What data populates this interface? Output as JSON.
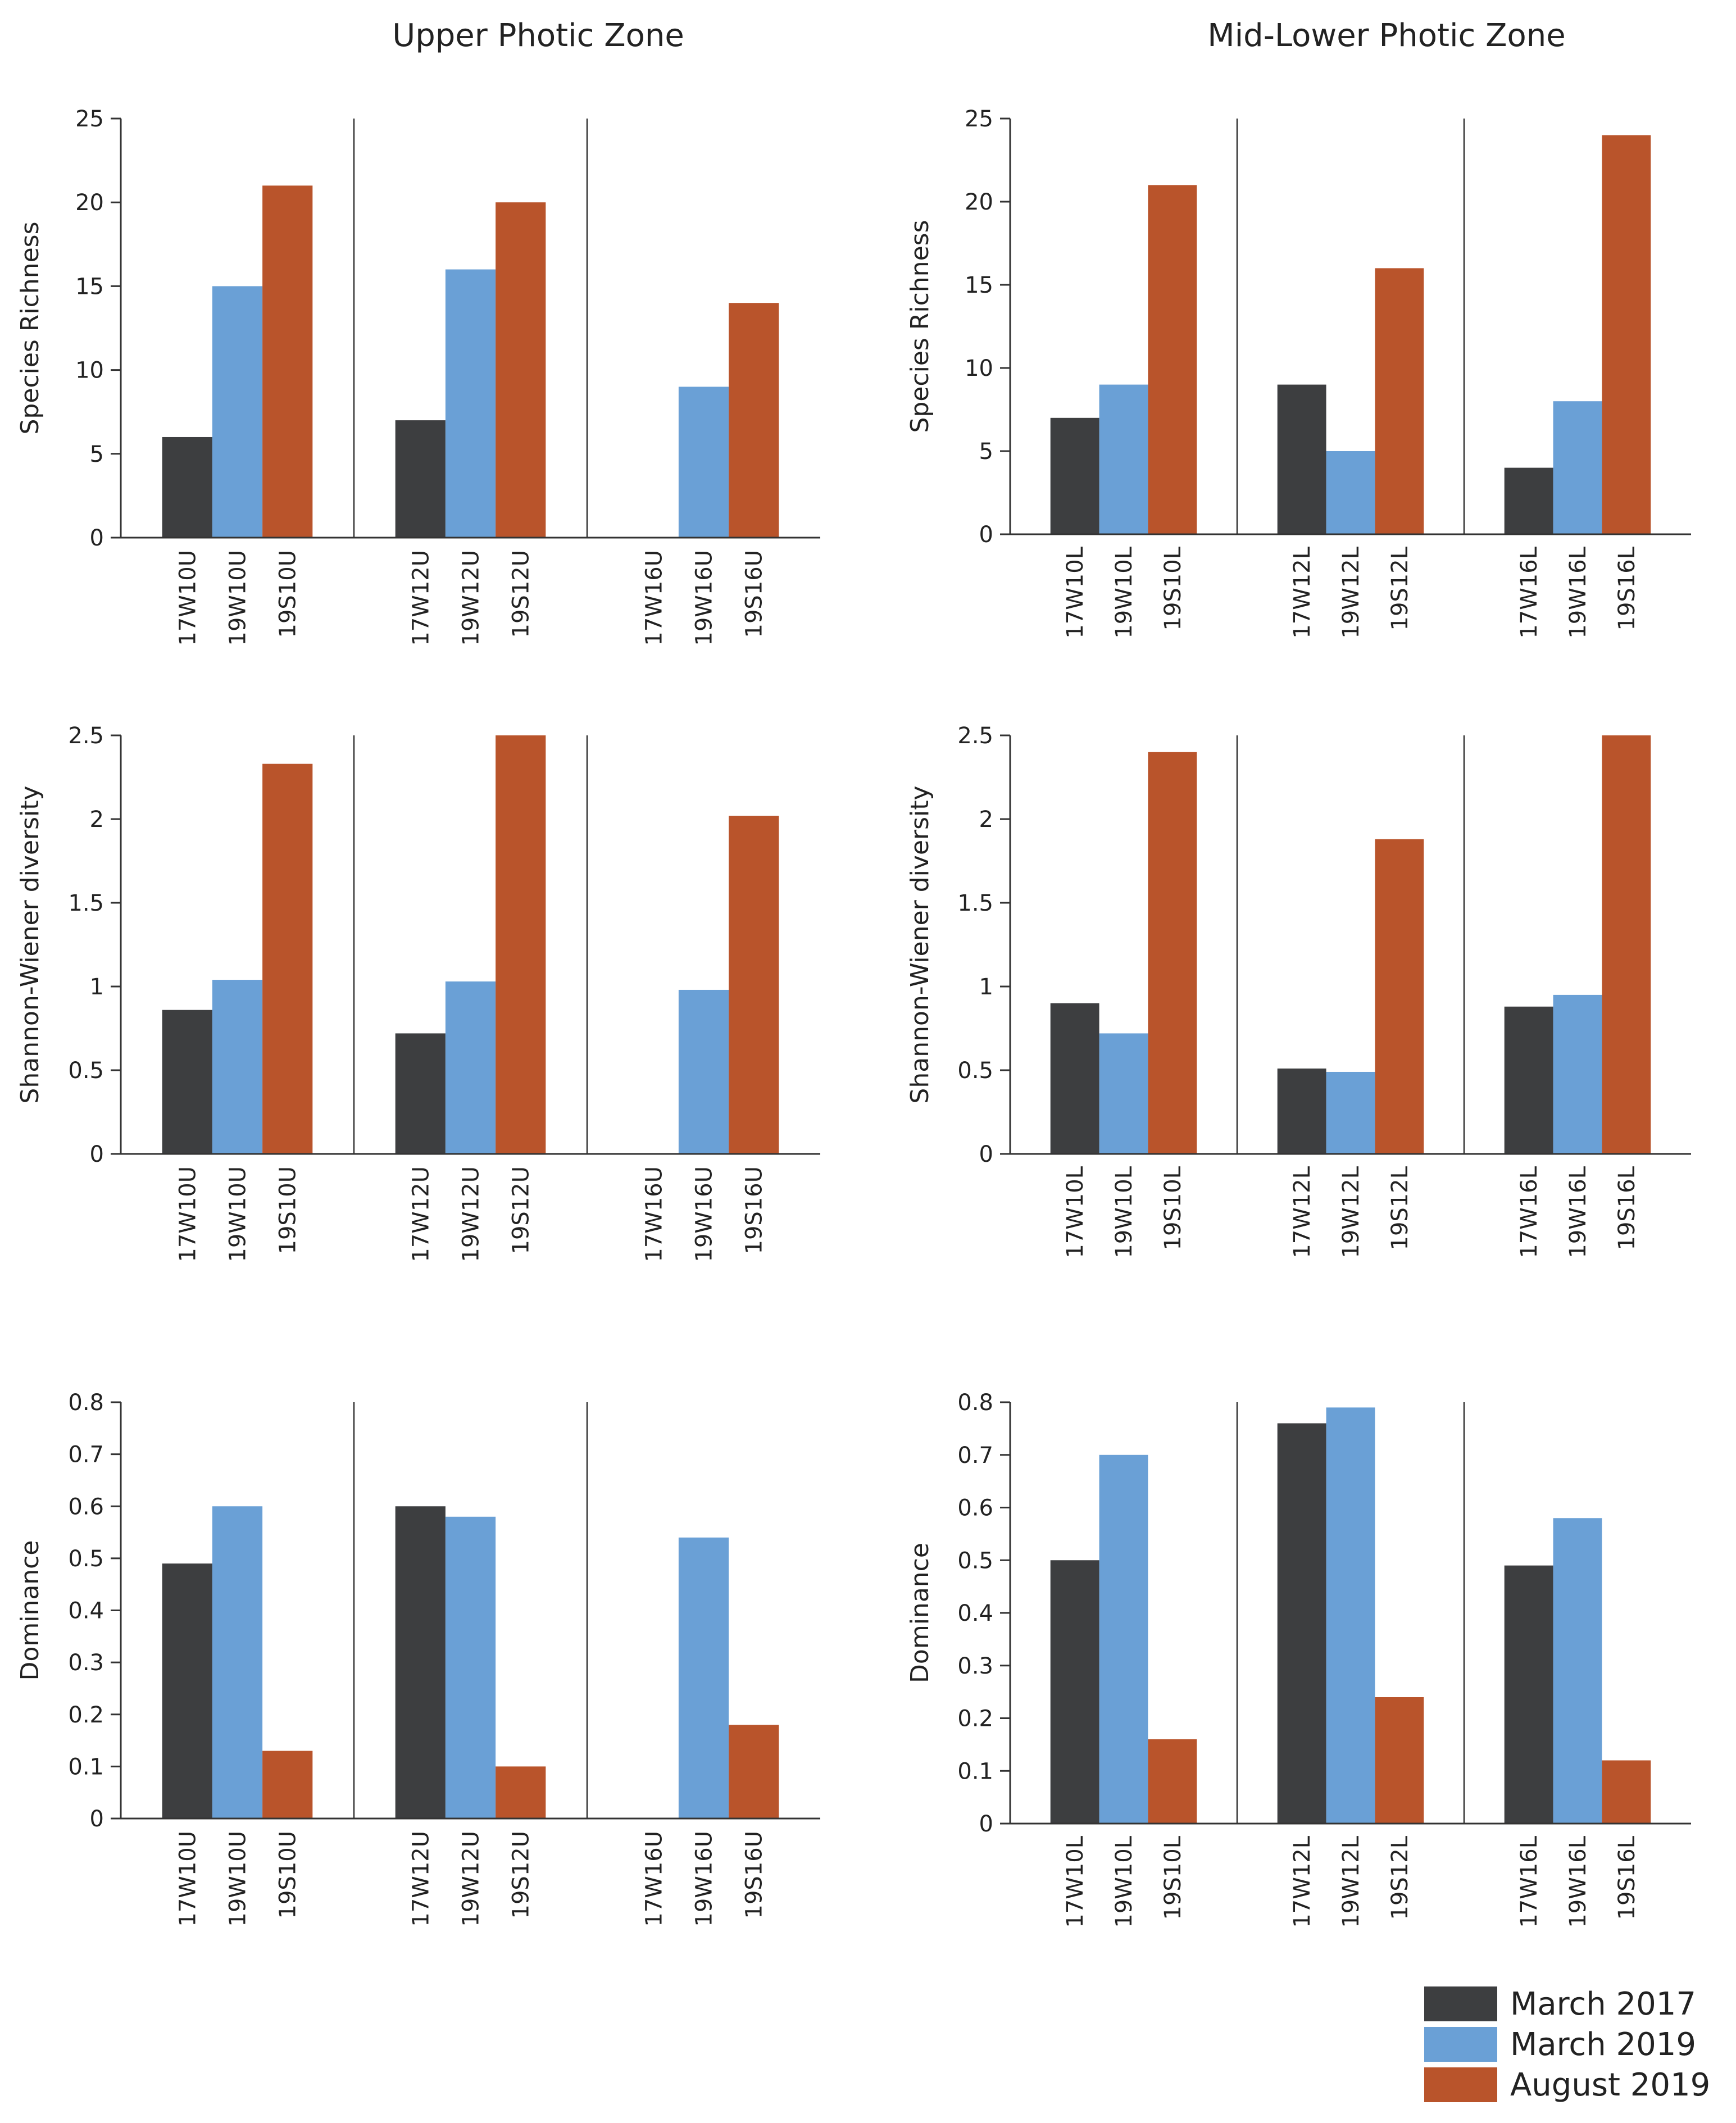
{
  "figure": {
    "column_titles": [
      "Upper Photic Zone",
      "Mid-Lower Photic Zone"
    ],
    "legend": [
      {
        "label": "March 2017",
        "color": "#3d3e40"
      },
      {
        "label": "March 2019",
        "color": "#6aa0d6"
      },
      {
        "label": "August 2019",
        "color": "#b9542b"
      }
    ]
  },
  "chart_data": [
    {
      "type": "bar",
      "panel": "upper-richness",
      "title": "Upper Photic Zone",
      "ylabel": "Species Richness",
      "ylim": [
        0,
        25
      ],
      "yticks": [
        0,
        5,
        10,
        15,
        20,
        25
      ],
      "ytick_labels": [
        "0",
        "5",
        "10",
        "15",
        "20",
        "25"
      ],
      "categories": [
        "17W10U",
        "19W10U",
        "19S10U",
        "17W12U",
        "19W12U",
        "19S12U",
        "17W16U",
        "19W16U",
        "19S16U"
      ],
      "values": [
        6,
        15,
        21,
        7,
        16,
        20,
        0,
        9,
        14
      ],
      "series_index": [
        0,
        1,
        2,
        0,
        1,
        2,
        0,
        1,
        2
      ]
    },
    {
      "type": "bar",
      "panel": "lower-richness",
      "title": "Mid-Lower Photic Zone",
      "ylabel": "Species Richness",
      "ylim": [
        0,
        25
      ],
      "yticks": [
        0,
        5,
        10,
        15,
        20,
        25
      ],
      "ytick_labels": [
        "0",
        "5",
        "10",
        "15",
        "20",
        "25"
      ],
      "categories": [
        "17W10L",
        "19W10L",
        "19S10L",
        "17W12L",
        "19W12L",
        "19S12L",
        "17W16L",
        "19W16L",
        "19S16L"
      ],
      "values": [
        7,
        9,
        21,
        9,
        5,
        16,
        4,
        8,
        24
      ],
      "series_index": [
        0,
        1,
        2,
        0,
        1,
        2,
        0,
        1,
        2
      ]
    },
    {
      "type": "bar",
      "panel": "upper-shannon",
      "ylabel": "Shannon-Wiener diversity",
      "ylim": [
        0,
        2.5
      ],
      "yticks": [
        0,
        0.5,
        1,
        1.5,
        2,
        2.5
      ],
      "ytick_labels": [
        "0",
        "0.5",
        "1",
        "1.5",
        "2",
        "2.5"
      ],
      "categories": [
        "17W10U",
        "19W10U",
        "19S10U",
        "17W12U",
        "19W12U",
        "19S12U",
        "17W16U",
        "19W16U",
        "19S16U"
      ],
      "values": [
        0.86,
        1.04,
        2.33,
        0.72,
        1.03,
        2.5,
        0,
        0.98,
        2.02
      ],
      "series_index": [
        0,
        1,
        2,
        0,
        1,
        2,
        0,
        1,
        2
      ]
    },
    {
      "type": "bar",
      "panel": "lower-shannon",
      "ylabel": "Shannon-Wiener diversity",
      "ylim": [
        0,
        2.5
      ],
      "yticks": [
        0,
        0.5,
        1,
        1.5,
        2,
        2.5
      ],
      "ytick_labels": [
        "0",
        "0.5",
        "1",
        "1.5",
        "2",
        "2.5"
      ],
      "categories": [
        "17W10L",
        "19W10L",
        "19S10L",
        "17W12L",
        "19W12L",
        "19S12L",
        "17W16L",
        "19W16L",
        "19S16L"
      ],
      "values": [
        0.9,
        0.72,
        2.4,
        0.51,
        0.49,
        1.88,
        0.88,
        0.95,
        2.5
      ],
      "series_index": [
        0,
        1,
        2,
        0,
        1,
        2,
        0,
        1,
        2
      ]
    },
    {
      "type": "bar",
      "panel": "upper-dominance",
      "ylabel": "Dominance",
      "ylim": [
        0,
        0.8
      ],
      "yticks": [
        0,
        0.1,
        0.2,
        0.3,
        0.4,
        0.5,
        0.6,
        0.7,
        0.8
      ],
      "ytick_labels": [
        "0",
        "0.1",
        "0.2",
        "0.3",
        "0.4",
        "0.5",
        "0.6",
        "0.7",
        "0.8"
      ],
      "categories": [
        "17W10U",
        "19W10U",
        "19S10U",
        "17W12U",
        "19W12U",
        "19S12U",
        "17W16U",
        "19W16U",
        "19S16U"
      ],
      "values": [
        0.49,
        0.6,
        0.13,
        0.6,
        0.58,
        0.1,
        0,
        0.54,
        0.18
      ],
      "series_index": [
        0,
        1,
        2,
        0,
        1,
        2,
        0,
        1,
        2
      ]
    },
    {
      "type": "bar",
      "panel": "lower-dominance",
      "ylabel": "Dominance",
      "ylim": [
        0,
        0.8
      ],
      "yticks": [
        0,
        0.1,
        0.2,
        0.3,
        0.4,
        0.5,
        0.6,
        0.7,
        0.8
      ],
      "ytick_labels": [
        "0",
        "0.1",
        "0.2",
        "0.3",
        "0.4",
        "0.5",
        "0.6",
        "0.7",
        "0.8"
      ],
      "categories": [
        "17W10L",
        "19W10L",
        "19S10L",
        "17W12L",
        "19W12L",
        "19S12L",
        "17W16L",
        "19W16L",
        "19S16L"
      ],
      "values": [
        0.5,
        0.7,
        0.16,
        0.76,
        0.79,
        0.24,
        0.49,
        0.58,
        0.12
      ],
      "series_index": [
        0,
        1,
        2,
        0,
        1,
        2,
        0,
        1,
        2
      ]
    }
  ]
}
